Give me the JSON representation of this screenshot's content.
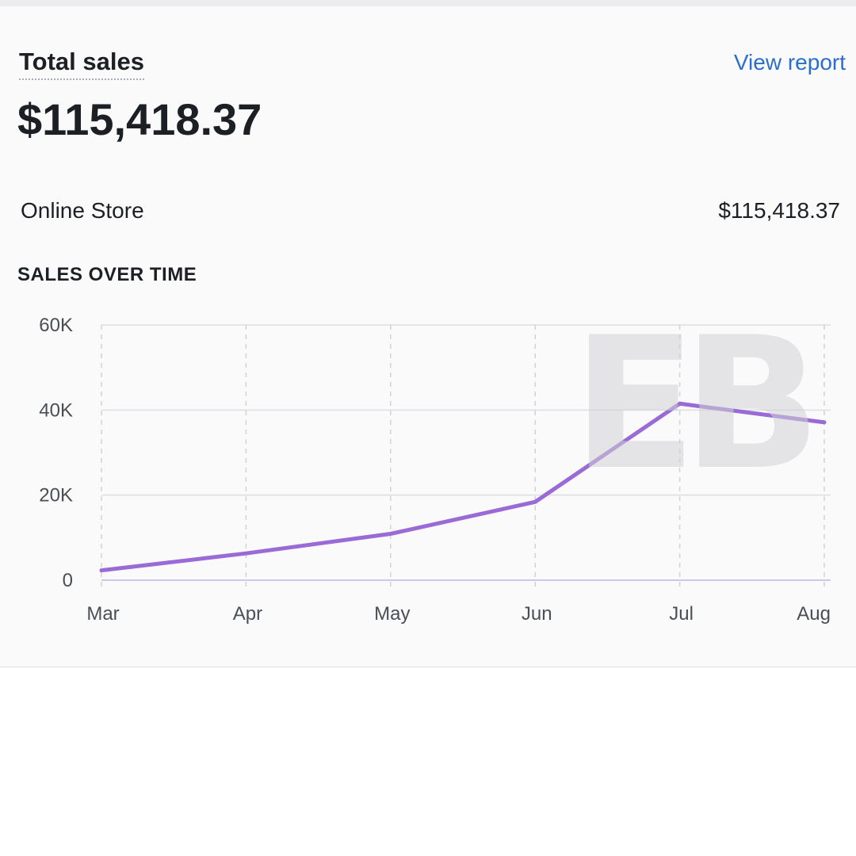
{
  "card": {
    "title": "Total sales",
    "view_report_label": "View report",
    "total_value": "$115,418.37"
  },
  "channels": [
    {
      "name": "Online Store",
      "value": "$115,418.37"
    }
  ],
  "watermark": "EB",
  "colors": {
    "line": "#9a6ad6",
    "link": "#2c6ecb",
    "text": "#1c2024"
  },
  "chart_data": {
    "type": "line",
    "title": "SALES OVER TIME",
    "xlabel": "",
    "ylabel": "",
    "categories": [
      "Mar",
      "Apr",
      "May",
      "Jun",
      "Jul",
      "Aug"
    ],
    "y_ticks": [
      "0",
      "20K",
      "40K",
      "60K"
    ],
    "ylim": [
      0,
      60000
    ],
    "grid": true,
    "series": [
      {
        "values": [
          2300,
          6300,
          10900,
          18400,
          41500,
          37100
        ]
      }
    ]
  }
}
